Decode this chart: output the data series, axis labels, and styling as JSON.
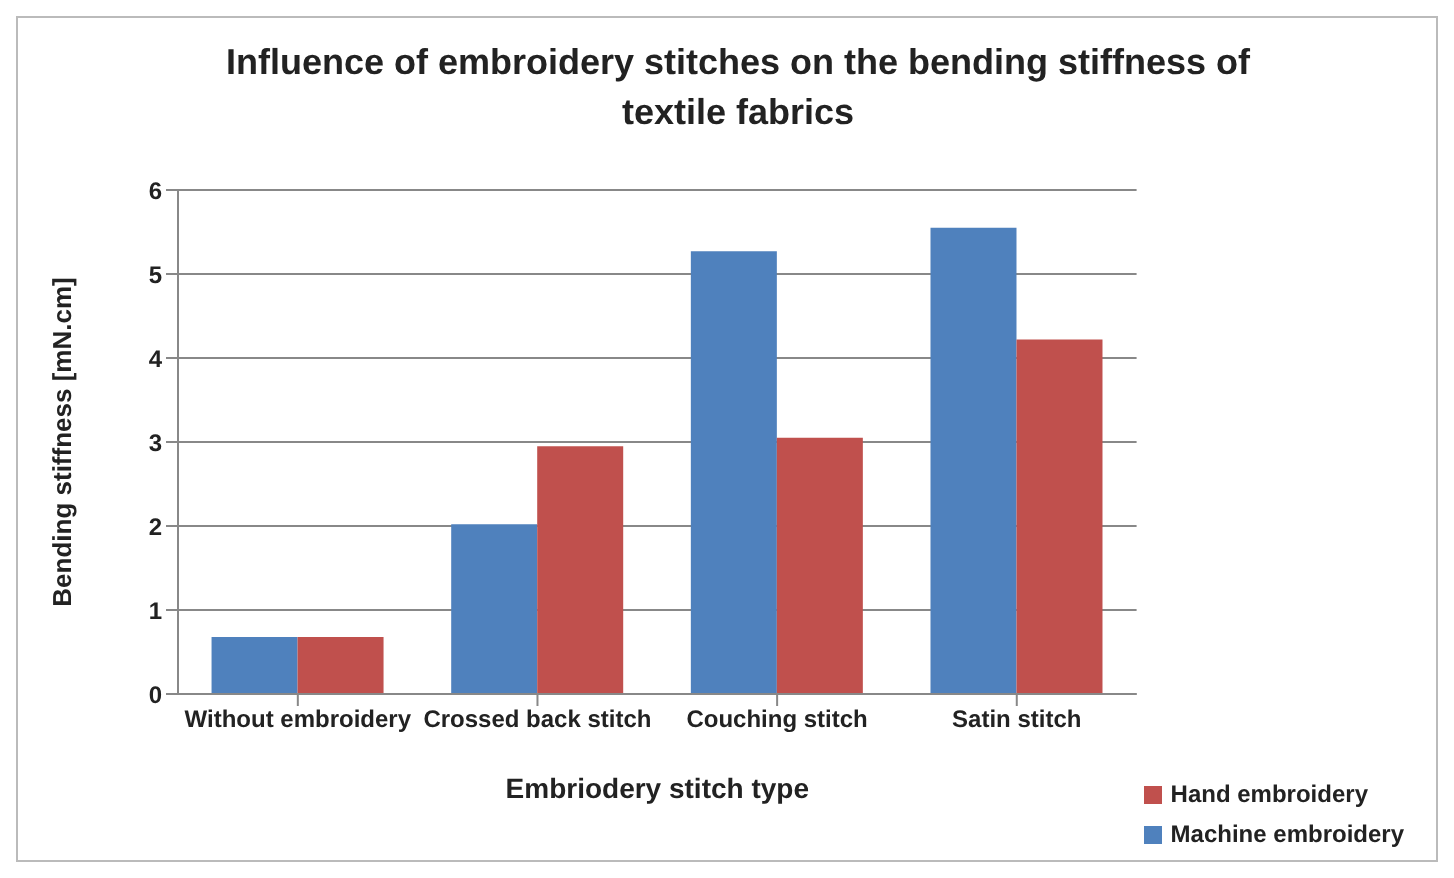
{
  "chart_data": {
    "type": "bar",
    "title": "Influence of embroidery stitches on the bending stiffness of textile fabrics",
    "xlabel": "Embriodery stitch type",
    "ylabel": "Bending stiffness [mN.cm]",
    "categories": [
      "Without embroidery",
      "Crossed back stitch",
      "Couching stitch",
      "Satin stitch"
    ],
    "series": [
      {
        "name": "Machine embroidery",
        "color": "#4f81bd",
        "values": [
          0.68,
          2.02,
          5.27,
          5.55
        ]
      },
      {
        "name": "Hand embroidery",
        "color": "#c0504d",
        "values": [
          0.68,
          2.95,
          3.05,
          4.22
        ]
      }
    ],
    "ylim": [
      0,
      6
    ],
    "yticks": [
      0,
      1,
      2,
      3,
      4,
      5,
      6
    ],
    "grid": "y",
    "legend": "bottom right"
  }
}
